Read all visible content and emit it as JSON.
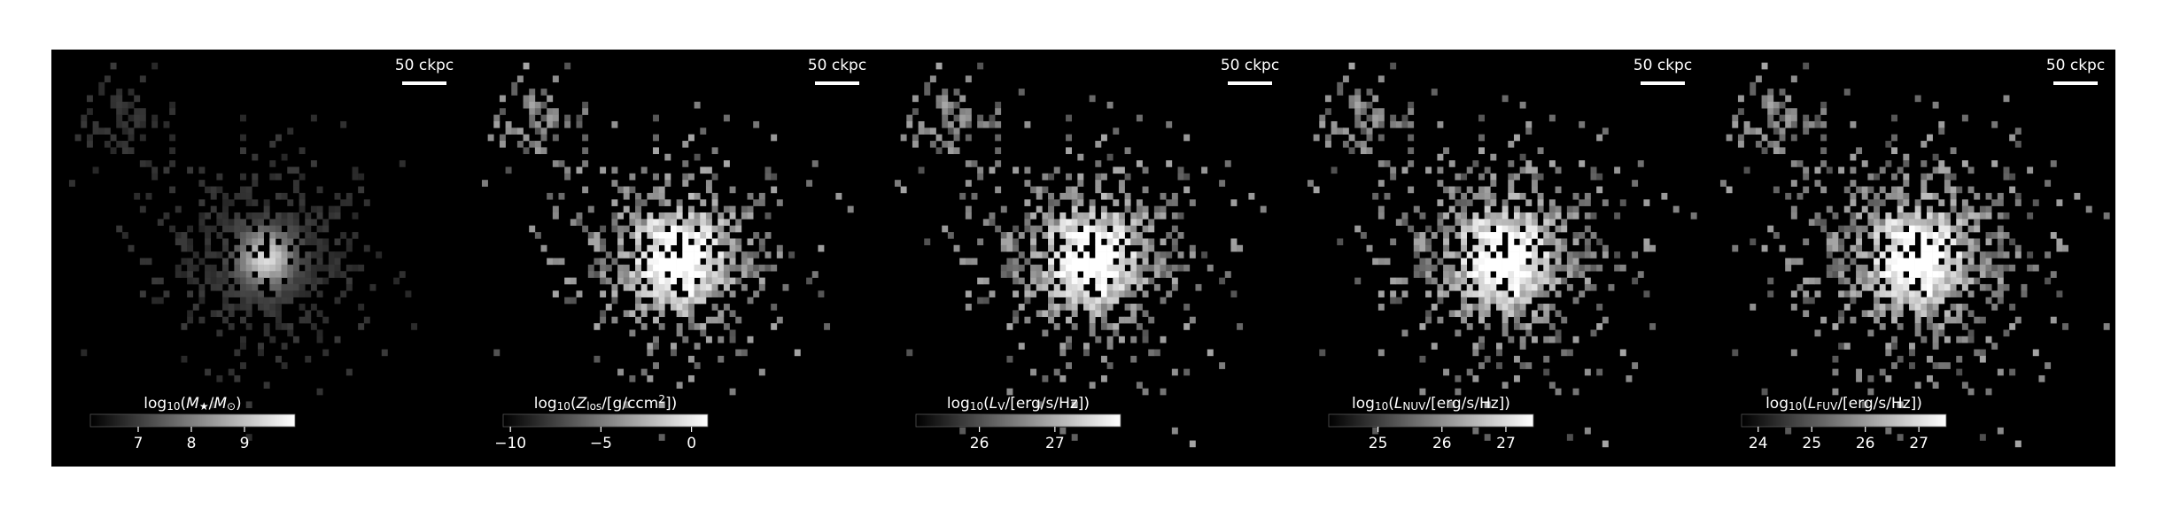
{
  "panels": [
    {
      "scale_bar": "50 ckpc",
      "colorbar": {
        "label_parts": [
          {
            "text": "log"
          },
          {
            "text": "10",
            "sub": true
          },
          {
            "text": "("
          },
          {
            "text": "M",
            "italic": true
          },
          {
            "text": "★",
            "sub": true
          },
          {
            "text": "/"
          },
          {
            "text": "M",
            "italic": true
          },
          {
            "text": "⊙",
            "sub": true
          },
          {
            "text": ")"
          }
        ],
        "lim": [
          6.1,
          9.95
        ],
        "ticks": [
          7,
          8,
          9
        ]
      }
    },
    {
      "scale_bar": "50 ckpc",
      "colorbar": {
        "label_parts": [
          {
            "text": "log"
          },
          {
            "text": "10",
            "sub": true
          },
          {
            "text": "("
          },
          {
            "text": "Z",
            "italic": true
          },
          {
            "text": "los",
            "sub": true
          },
          {
            "text": "/[g/ccm"
          },
          {
            "text": "2",
            "sup": true
          },
          {
            "text": "])"
          }
        ],
        "lim": [
          -10.4,
          0.9
        ],
        "ticks": [
          {
            "value": -10,
            "label": "−10"
          },
          {
            "value": -5,
            "label": "−5"
          },
          0
        ]
      }
    },
    {
      "scale_bar": "50 ckpc",
      "colorbar": {
        "label_parts": [
          {
            "text": "log"
          },
          {
            "text": "10",
            "sub": true
          },
          {
            "text": "("
          },
          {
            "text": "L",
            "italic": true
          },
          {
            "text": "V",
            "sub": true
          },
          {
            "text": "/[erg/s/Hz])"
          }
        ],
        "lim": [
          25.16,
          27.87
        ],
        "ticks": [
          26,
          27
        ]
      }
    },
    {
      "scale_bar": "50 ckpc",
      "colorbar": {
        "label_parts": [
          {
            "text": "log"
          },
          {
            "text": "10",
            "sub": true
          },
          {
            "text": "("
          },
          {
            "text": "L",
            "italic": true
          },
          {
            "text": "NUV",
            "sub": true
          },
          {
            "text": "/[erg/s/Hz])"
          }
        ],
        "lim": [
          24.23,
          27.43
        ],
        "ticks": [
          25,
          26,
          27
        ]
      }
    },
    {
      "scale_bar": "50 ckpc",
      "colorbar": {
        "label_parts": [
          {
            "text": "log"
          },
          {
            "text": "10",
            "sub": true
          },
          {
            "text": "("
          },
          {
            "text": "L",
            "italic": true
          },
          {
            "text": "FUV",
            "sub": true
          },
          {
            "text": "/[erg/s/Hz])"
          }
        ],
        "lim": [
          23.69,
          27.51
        ],
        "ticks": [
          24,
          25,
          26,
          27
        ]
      }
    }
  ]
}
